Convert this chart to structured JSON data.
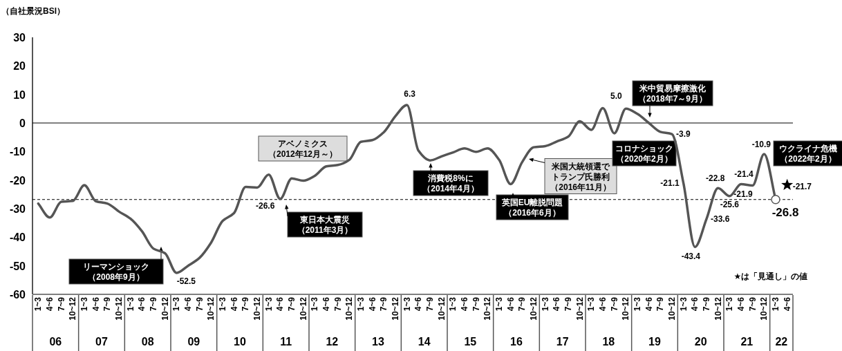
{
  "chart_data": {
    "type": "line",
    "ylabel": "（自社景況BSI）",
    "categories": [
      "1~3",
      "4~6",
      "7~9",
      "10~12",
      "1~3",
      "4~6",
      "7~9",
      "10~12",
      "1~3",
      "4~6",
      "7~9",
      "10~12",
      "1~3",
      "4~6",
      "7~9",
      "10~12",
      "1~3",
      "4~6",
      "7~9",
      "10~12",
      "1~3",
      "4~6",
      "7~9",
      "10~12",
      "1~3",
      "4~6",
      "7~9",
      "10~12",
      "1~3",
      "4~6",
      "7~9",
      "10~12",
      "1~3",
      "4~6",
      "7~9",
      "10~12",
      "1~3",
      "4~6",
      "7~9",
      "10~12",
      "1~3",
      "4~6",
      "7~9",
      "10~12",
      "1~3",
      "4~6",
      "7~9",
      "10~12",
      "1~3",
      "4~6",
      "7~9",
      "10~12",
      "1~3",
      "4~6",
      "7~9",
      "10~12",
      "1~3",
      "4~6",
      "7~9",
      "10~12",
      "1~3",
      "4~6",
      "7~9",
      "10~12",
      "1~3",
      "4~6"
    ],
    "ylim": [
      -60,
      30
    ],
    "yticks": [
      -60,
      -50,
      -40,
      -30,
      -20,
      -10,
      0,
      10,
      20,
      30
    ],
    "grid": false,
    "ref_lines": [
      {
        "axis": "y",
        "value": 0,
        "line_style": "solid",
        "color": "#000000"
      },
      {
        "axis": "y",
        "value": -26.8,
        "line_style": "dashed",
        "color": "#000000"
      }
    ],
    "annotations": [
      "06",
      "07",
      "08",
      "09",
      "10",
      "11",
      "12",
      "13",
      "14",
      "15",
      "16",
      "17",
      "18",
      "19",
      "20",
      "21",
      "22",
      "リーマンショック",
      "（2008年9月）",
      "東日本大震災",
      "（2011年3月）",
      "アベノミクス",
      "（2012年12月～）",
      "消費税8%に",
      "（2014年4月）",
      "英国EU離脱問題",
      "（2016年6月）",
      "米国大統領選で",
      "トランプ氏勝利",
      "（2016年11月）",
      "米中貿易摩擦激化",
      "（2018年7～9月）",
      "コロナショック",
      "（2020年2月）",
      "ウクライナ危機",
      "（2022年2月）",
      "★は「見通し」の値"
    ],
    "series": [
      {
        "color": "#555555",
        "marker": "none",
        "line_style": "solid",
        "values": [
          -28.2,
          -33.1,
          -27.6,
          -27.3,
          -21.8,
          -27.4,
          -28.2,
          -31.0,
          -33.5,
          -37.9,
          -44.0,
          -45.6,
          -52.5,
          -50.0,
          -47.2,
          -41.9,
          -34.3,
          -31.5,
          -22.4,
          -22.6,
          -18.1,
          -26.6,
          -19.4,
          -20.2,
          -18.5,
          -15.2,
          -14.7,
          -12.9,
          -6.6,
          -6.0,
          -3.2,
          2.4,
          6.3,
          -9.7,
          -13.1,
          -11.7,
          -10.3,
          -8.9,
          -10.1,
          -8.9,
          -12.9,
          -21.4,
          -13.7,
          -8.5,
          -8.1,
          -6.5,
          -4.8,
          0.6,
          -2.4,
          5.2,
          -3.6,
          5.0,
          3.2,
          0.0,
          -3.1,
          -3.9,
          -21.1,
          -43.4,
          -33.6,
          -22.8,
          -25.6,
          -21.4,
          -21.9,
          -10.9,
          -26.8,
          null
        ],
        "value_labels": [
          null,
          null,
          null,
          null,
          null,
          null,
          null,
          null,
          null,
          null,
          null,
          null,
          "-52.5",
          null,
          null,
          null,
          null,
          null,
          null,
          null,
          null,
          "-26.6",
          null,
          null,
          null,
          null,
          null,
          null,
          null,
          null,
          null,
          null,
          "6.3",
          null,
          null,
          null,
          null,
          null,
          null,
          null,
          null,
          null,
          null,
          null,
          null,
          null,
          null,
          null,
          null,
          null,
          null,
          "5.0",
          null,
          null,
          null,
          "-3.9",
          "-21.1",
          "-43.4",
          "-33.6",
          "-22.8",
          "-25.6",
          "-21.4",
          "-21.9",
          "-10.9",
          null,
          null
        ]
      },
      {
        "type": "scatter",
        "color": "#555555",
        "marker": "circle",
        "values": [
          null,
          null,
          null,
          null,
          null,
          null,
          null,
          null,
          null,
          null,
          null,
          null,
          null,
          null,
          null,
          null,
          null,
          null,
          null,
          null,
          null,
          null,
          null,
          null,
          null,
          null,
          null,
          null,
          null,
          null,
          null,
          null,
          null,
          null,
          null,
          null,
          null,
          null,
          null,
          null,
          null,
          null,
          null,
          null,
          null,
          null,
          null,
          null,
          null,
          null,
          null,
          null,
          null,
          null,
          null,
          null,
          null,
          null,
          null,
          null,
          null,
          null,
          null,
          null,
          -26.8,
          null
        ],
        "value_labels": [
          null,
          null,
          null,
          null,
          null,
          null,
          null,
          null,
          null,
          null,
          null,
          null,
          null,
          null,
          null,
          null,
          null,
          null,
          null,
          null,
          null,
          null,
          null,
          null,
          null,
          null,
          null,
          null,
          null,
          null,
          null,
          null,
          null,
          null,
          null,
          null,
          null,
          null,
          null,
          null,
          null,
          null,
          null,
          null,
          null,
          null,
          null,
          null,
          null,
          null,
          null,
          null,
          null,
          null,
          null,
          null,
          null,
          null,
          null,
          null,
          null,
          null,
          null,
          null,
          "-26.8",
          null
        ]
      },
      {
        "type": "scatter",
        "color": "#000000",
        "marker": "star",
        "values": [
          null,
          null,
          null,
          null,
          null,
          null,
          null,
          null,
          null,
          null,
          null,
          null,
          null,
          null,
          null,
          null,
          null,
          null,
          null,
          null,
          null,
          null,
          null,
          null,
          null,
          null,
          null,
          null,
          null,
          null,
          null,
          null,
          null,
          null,
          null,
          null,
          null,
          null,
          null,
          null,
          null,
          null,
          null,
          null,
          null,
          null,
          null,
          null,
          null,
          null,
          null,
          null,
          null,
          null,
          null,
          null,
          null,
          null,
          null,
          null,
          null,
          null,
          null,
          null,
          null,
          -21.7
        ],
        "value_labels": [
          null,
          null,
          null,
          null,
          null,
          null,
          null,
          null,
          null,
          null,
          null,
          null,
          null,
          null,
          null,
          null,
          null,
          null,
          null,
          null,
          null,
          null,
          null,
          null,
          null,
          null,
          null,
          null,
          null,
          null,
          null,
          null,
          null,
          null,
          null,
          null,
          null,
          null,
          null,
          null,
          null,
          null,
          null,
          null,
          null,
          null,
          null,
          null,
          null,
          null,
          null,
          null,
          null,
          null,
          null,
          null,
          null,
          null,
          null,
          null,
          null,
          null,
          null,
          null,
          null,
          "-21.7"
        ]
      }
    ]
  }
}
